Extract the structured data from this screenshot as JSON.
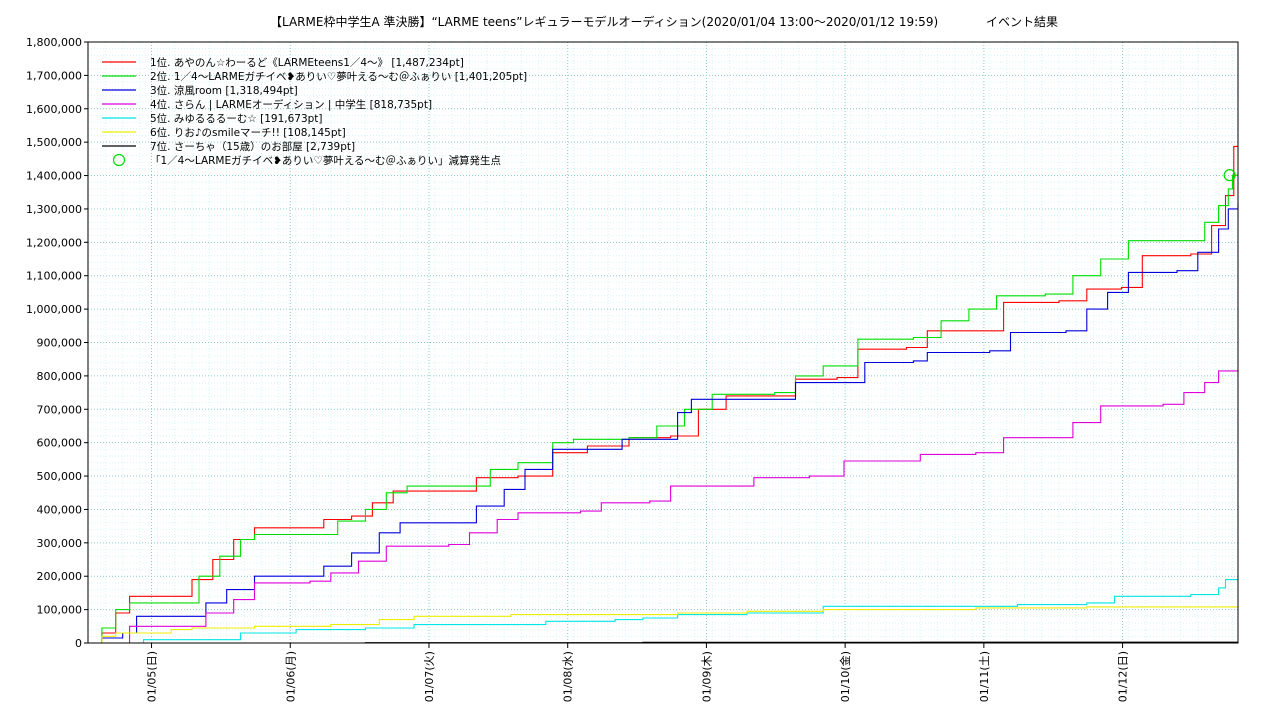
{
  "chart_data": {
    "type": "line",
    "title": "【LARME枠中学生A 準決勝】“LARME teens”レギュラーモデルオーディション(2020/01/04 13:00〜2020/01/12 19:59)",
    "subtitle": "イベント結果",
    "x_tick_labels": [
      "01/05(日)",
      "01/06(月)",
      "01/07(火)",
      "01/08(水)",
      "01/09(木)",
      "01/10(金)",
      "01/11(土)",
      "01/12(日)"
    ],
    "x_ticks_day": [
      0.458,
      1.458,
      2.458,
      3.458,
      4.458,
      5.458,
      6.458,
      7.458
    ],
    "x_range_day": [
      0,
      8.29
    ],
    "y_range": [
      0,
      1800000
    ],
    "y_ticks": [
      "0",
      "100,000",
      "200,000",
      "300,000",
      "400,000",
      "500,000",
      "600,000",
      "700,000",
      "800,000",
      "900,000",
      "1,000,000",
      "1,100,000",
      "1,200,000",
      "1,300,000",
      "1,400,000",
      "1,500,000",
      "1,600,000",
      "1,700,000",
      "1,800,000"
    ],
    "grid": true,
    "legend_position": "top-left",
    "series": [
      {
        "name": "1位. あやのん☆わーるど《LARMEteens1／4〜》 [1,487,234pt]",
        "color": "#ff0000",
        "points": [
          [
            0,
            0
          ],
          [
            0.1,
            30000
          ],
          [
            0.2,
            90000
          ],
          [
            0.3,
            140000
          ],
          [
            0.65,
            140000
          ],
          [
            0.75,
            190000
          ],
          [
            0.9,
            250000
          ],
          [
            1.05,
            310000
          ],
          [
            1.2,
            345000
          ],
          [
            1.6,
            345000
          ],
          [
            1.7,
            370000
          ],
          [
            1.9,
            380000
          ],
          [
            2.05,
            420000
          ],
          [
            2.2,
            455000
          ],
          [
            2.65,
            455000
          ],
          [
            2.8,
            495000
          ],
          [
            3.1,
            500000
          ],
          [
            3.35,
            570000
          ],
          [
            3.6,
            590000
          ],
          [
            3.8,
            590000
          ],
          [
            3.9,
            615000
          ],
          [
            4.2,
            620000
          ],
          [
            4.4,
            700000
          ],
          [
            4.6,
            740000
          ],
          [
            4.9,
            740000
          ],
          [
            5.1,
            790000
          ],
          [
            5.4,
            795000
          ],
          [
            5.55,
            880000
          ],
          [
            5.9,
            885000
          ],
          [
            6.05,
            935000
          ],
          [
            6.45,
            935000
          ],
          [
            6.6,
            1020000
          ],
          [
            7.0,
            1025000
          ],
          [
            7.2,
            1060000
          ],
          [
            7.45,
            1065000
          ],
          [
            7.6,
            1160000
          ],
          [
            7.95,
            1165000
          ],
          [
            8.1,
            1250000
          ],
          [
            8.2,
            1340000
          ],
          [
            8.26,
            1487234
          ],
          [
            8.29,
            1487234
          ]
        ]
      },
      {
        "name": "2位. 1／4〜LARMEガチイベ❥ありい♡夢叶える〜む＠ふぁりい [1,401,205pt]",
        "color": "#00dd00",
        "points": [
          [
            0,
            0
          ],
          [
            0.1,
            45000
          ],
          [
            0.2,
            100000
          ],
          [
            0.3,
            120000
          ],
          [
            0.65,
            120000
          ],
          [
            0.8,
            200000
          ],
          [
            0.95,
            260000
          ],
          [
            1.1,
            310000
          ],
          [
            1.2,
            325000
          ],
          [
            1.6,
            325000
          ],
          [
            1.8,
            365000
          ],
          [
            2.0,
            400000
          ],
          [
            2.15,
            450000
          ],
          [
            2.3,
            470000
          ],
          [
            2.65,
            470000
          ],
          [
            2.9,
            520000
          ],
          [
            3.1,
            540000
          ],
          [
            3.35,
            600000
          ],
          [
            3.5,
            610000
          ],
          [
            3.9,
            615000
          ],
          [
            4.1,
            650000
          ],
          [
            4.3,
            700000
          ],
          [
            4.5,
            745000
          ],
          [
            4.95,
            750000
          ],
          [
            5.1,
            800000
          ],
          [
            5.3,
            830000
          ],
          [
            5.55,
            910000
          ],
          [
            5.95,
            915000
          ],
          [
            6.15,
            965000
          ],
          [
            6.35,
            1000000
          ],
          [
            6.55,
            1040000
          ],
          [
            6.9,
            1045000
          ],
          [
            7.1,
            1100000
          ],
          [
            7.3,
            1150000
          ],
          [
            7.5,
            1205000
          ],
          [
            7.9,
            1205000
          ],
          [
            8.05,
            1260000
          ],
          [
            8.15,
            1310000
          ],
          [
            8.22,
            1360000
          ],
          [
            8.25,
            1401205
          ],
          [
            8.29,
            1401205
          ]
        ]
      },
      {
        "name": "3位. 涼風room [1,318,494pt]",
        "color": "#0000dd",
        "points": [
          [
            0,
            0
          ],
          [
            0.1,
            15000
          ],
          [
            0.25,
            30000
          ],
          [
            0.35,
            80000
          ],
          [
            0.6,
            80000
          ],
          [
            0.85,
            120000
          ],
          [
            1.0,
            160000
          ],
          [
            1.2,
            200000
          ],
          [
            1.6,
            200000
          ],
          [
            1.7,
            230000
          ],
          [
            1.9,
            270000
          ],
          [
            2.1,
            330000
          ],
          [
            2.25,
            360000
          ],
          [
            2.65,
            360000
          ],
          [
            2.8,
            410000
          ],
          [
            3.0,
            460000
          ],
          [
            3.15,
            520000
          ],
          [
            3.35,
            580000
          ],
          [
            3.75,
            580000
          ],
          [
            3.85,
            610000
          ],
          [
            4.1,
            610000
          ],
          [
            4.25,
            690000
          ],
          [
            4.35,
            730000
          ],
          [
            4.9,
            730000
          ],
          [
            5.1,
            780000
          ],
          [
            5.4,
            780000
          ],
          [
            5.6,
            840000
          ],
          [
            5.95,
            845000
          ],
          [
            6.05,
            870000
          ],
          [
            6.5,
            875000
          ],
          [
            6.65,
            930000
          ],
          [
            7.05,
            935000
          ],
          [
            7.2,
            1000000
          ],
          [
            7.35,
            1050000
          ],
          [
            7.5,
            1110000
          ],
          [
            7.85,
            1115000
          ],
          [
            8.0,
            1170000
          ],
          [
            8.15,
            1240000
          ],
          [
            8.22,
            1300000
          ],
          [
            8.29,
            1318494
          ]
        ]
      },
      {
        "name": "4位. さらん | LARMEオーディション | 中学生 [818,735pt]",
        "color": "#dd00dd",
        "points": [
          [
            0,
            0
          ],
          [
            0.2,
            0
          ],
          [
            0.3,
            50000
          ],
          [
            0.75,
            50000
          ],
          [
            0.85,
            90000
          ],
          [
            1.05,
            130000
          ],
          [
            1.2,
            180000
          ],
          [
            1.6,
            185000
          ],
          [
            1.75,
            210000
          ],
          [
            1.95,
            245000
          ],
          [
            2.15,
            290000
          ],
          [
            2.6,
            295000
          ],
          [
            2.75,
            330000
          ],
          [
            2.95,
            370000
          ],
          [
            3.1,
            390000
          ],
          [
            3.55,
            395000
          ],
          [
            3.7,
            420000
          ],
          [
            4.05,
            425000
          ],
          [
            4.2,
            470000
          ],
          [
            4.65,
            470000
          ],
          [
            4.8,
            495000
          ],
          [
            5.2,
            500000
          ],
          [
            5.45,
            545000
          ],
          [
            5.85,
            545000
          ],
          [
            6.0,
            565000
          ],
          [
            6.4,
            570000
          ],
          [
            6.6,
            615000
          ],
          [
            6.95,
            615000
          ],
          [
            7.1,
            660000
          ],
          [
            7.3,
            710000
          ],
          [
            7.75,
            715000
          ],
          [
            7.9,
            750000
          ],
          [
            8.05,
            780000
          ],
          [
            8.15,
            815000
          ],
          [
            8.29,
            818735
          ]
        ]
      },
      {
        "name": "5位. みゆるるるーむ☆ [191,673pt]",
        "color": "#00e5e5",
        "points": [
          [
            0,
            0
          ],
          [
            0.2,
            0
          ],
          [
            0.4,
            10000
          ],
          [
            0.9,
            10000
          ],
          [
            1.1,
            30000
          ],
          [
            1.5,
            40000
          ],
          [
            2.0,
            45000
          ],
          [
            2.35,
            55000
          ],
          [
            2.8,
            55000
          ],
          [
            3.3,
            65000
          ],
          [
            3.8,
            70000
          ],
          [
            4.0,
            75000
          ],
          [
            4.25,
            85000
          ],
          [
            4.75,
            90000
          ],
          [
            5.15,
            90000
          ],
          [
            5.3,
            110000
          ],
          [
            6.35,
            110000
          ],
          [
            6.7,
            115000
          ],
          [
            7.2,
            120000
          ],
          [
            7.4,
            140000
          ],
          [
            7.95,
            145000
          ],
          [
            8.15,
            165000
          ],
          [
            8.2,
            190000
          ],
          [
            8.29,
            191673
          ]
        ]
      },
      {
        "name": "6位. りお♪のsmileマーチ!! [108,145pt]",
        "color": "#eeee00",
        "points": [
          [
            0,
            0
          ],
          [
            0.1,
            20000
          ],
          [
            0.2,
            30000
          ],
          [
            0.6,
            40000
          ],
          [
            0.75,
            45000
          ],
          [
            1.2,
            50000
          ],
          [
            1.75,
            55000
          ],
          [
            2.1,
            70000
          ],
          [
            2.35,
            80000
          ],
          [
            2.8,
            80000
          ],
          [
            3.05,
            85000
          ],
          [
            3.5,
            85000
          ],
          [
            4.25,
            90000
          ],
          [
            4.75,
            95000
          ],
          [
            5.3,
            100000
          ],
          [
            6.4,
            105000
          ],
          [
            7.2,
            108000
          ],
          [
            8.29,
            108145
          ]
        ]
      },
      {
        "name": "7位. さーちゃ（15歳）のお部屋 [2,739pt]",
        "color": "#000000",
        "points": [
          [
            0,
            0
          ],
          [
            2.0,
            1000
          ],
          [
            4.0,
            2000
          ],
          [
            6.0,
            2500
          ],
          [
            8.29,
            2739
          ]
        ]
      }
    ],
    "annotation": {
      "label": "「1／4〜LARMEガチイベ❥ありい♡夢叶える〜む＠ふぁりい」減算発生点",
      "color": "#00dd00",
      "x": 8.23,
      "y": 1401205
    }
  }
}
